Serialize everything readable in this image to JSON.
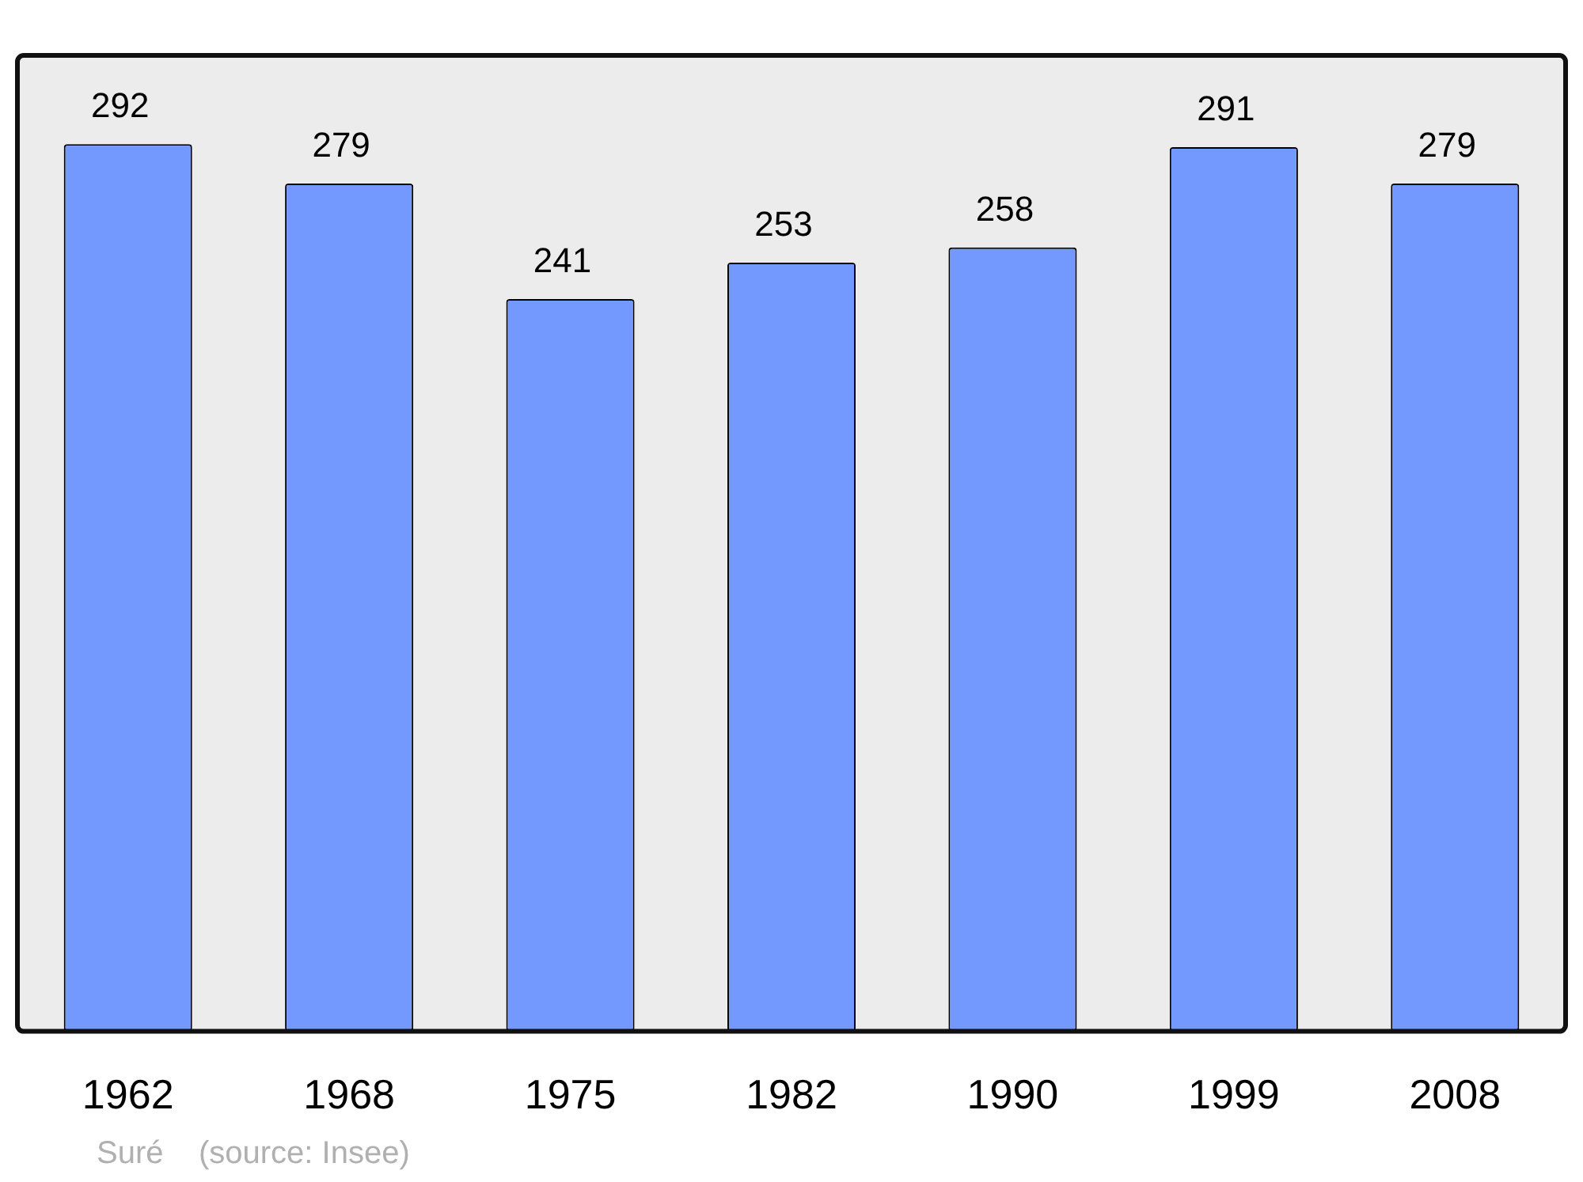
{
  "chart_data": {
    "type": "bar",
    "categories": [
      "1962",
      "1968",
      "1975",
      "1982",
      "1990",
      "1999",
      "2008"
    ],
    "values": [
      292,
      279,
      241,
      253,
      258,
      291,
      279
    ],
    "color": "#7399ff",
    "data_labels": true,
    "grid": false,
    "legend": false,
    "annotations": [
      "Suré    (source: Insee)"
    ]
  }
}
